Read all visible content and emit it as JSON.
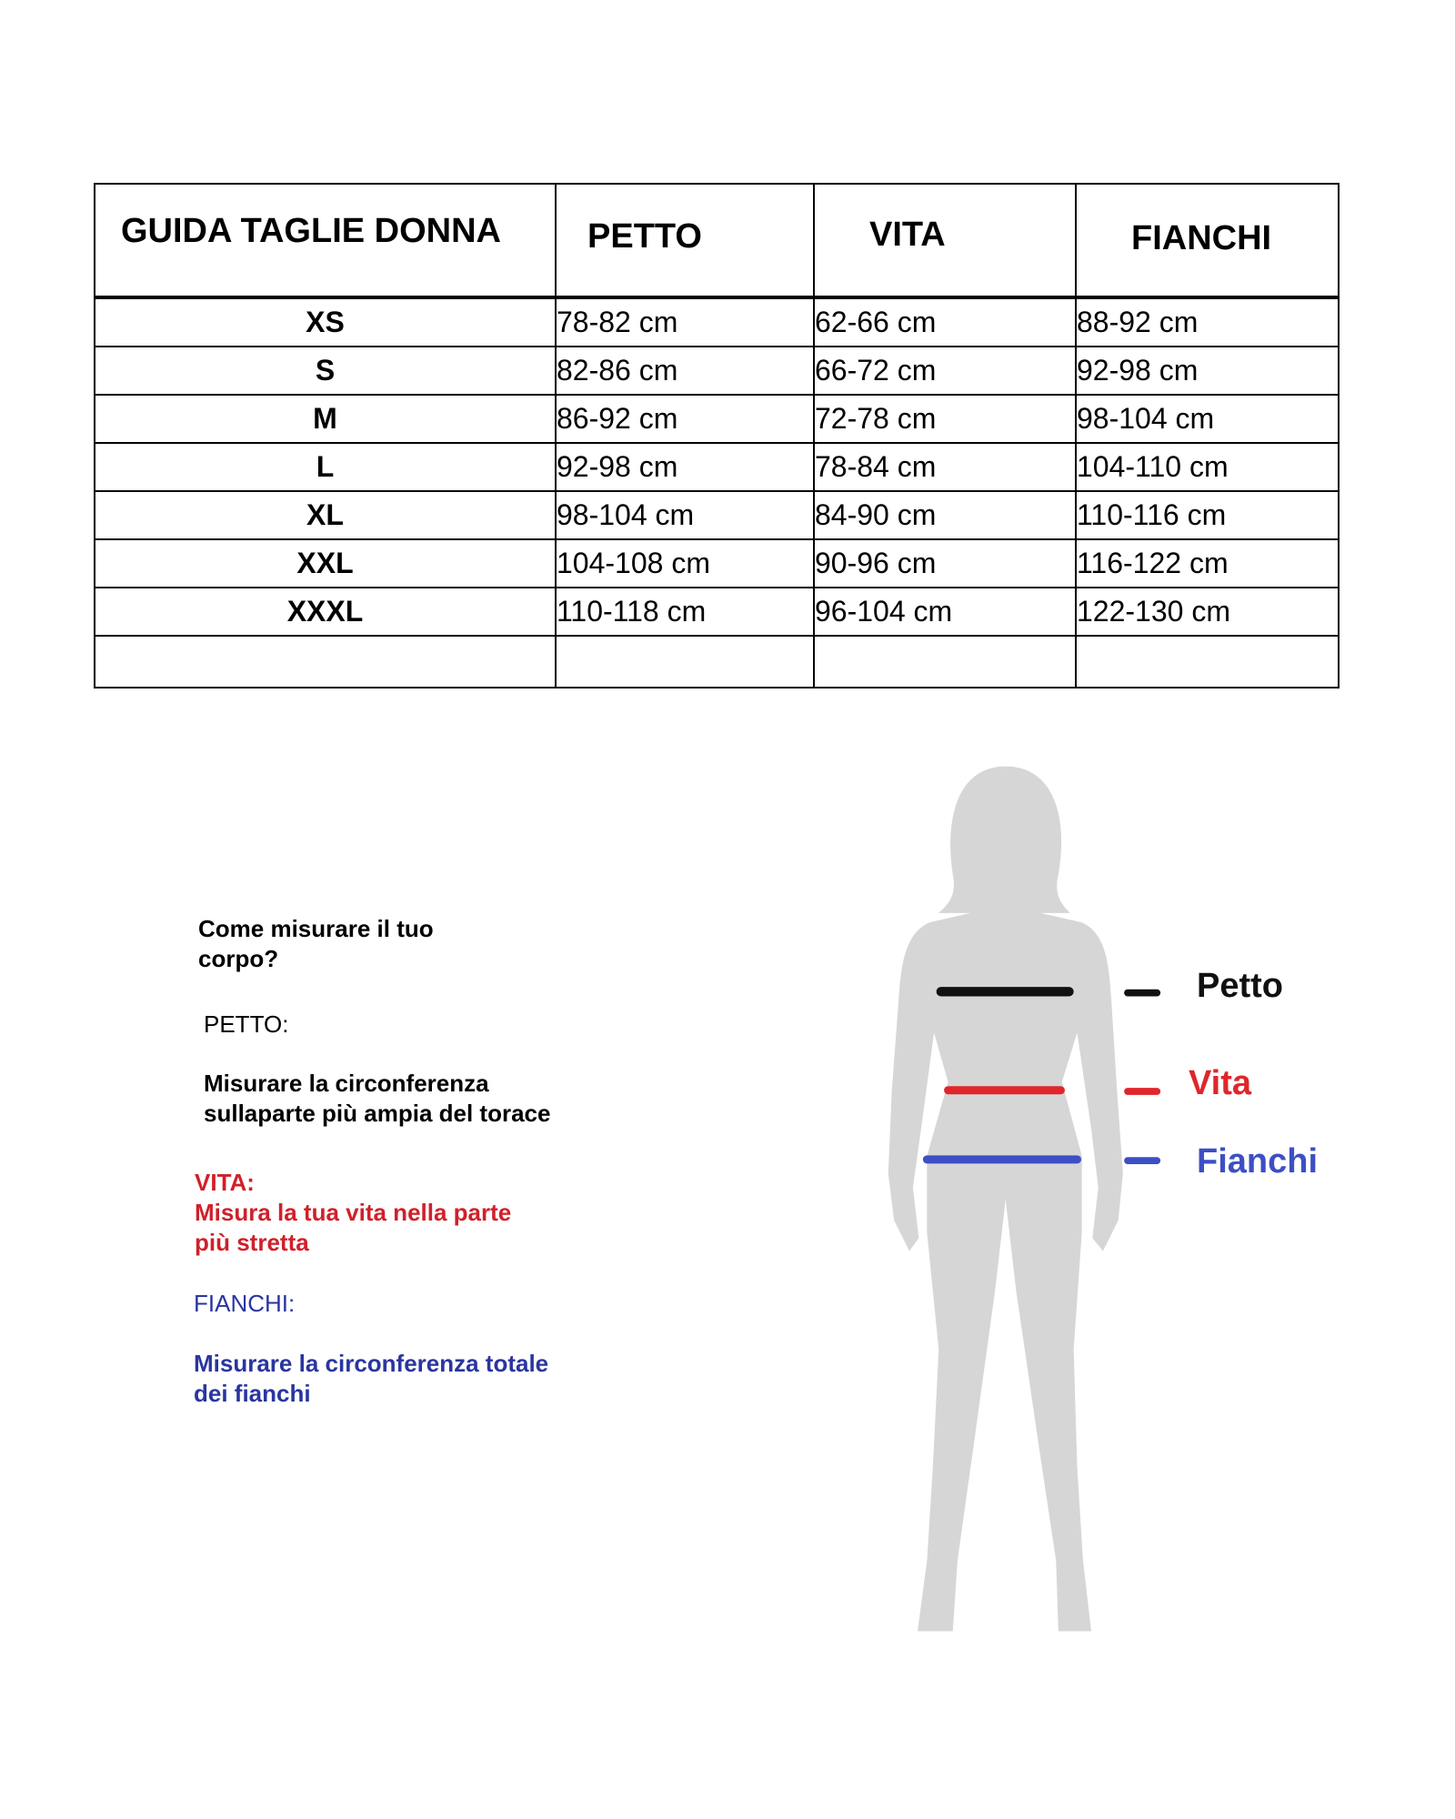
{
  "table": {
    "headers": [
      "GUIDA TAGLIE DONNA",
      "PETTO",
      "VITA",
      "FIANCHI"
    ],
    "rows": [
      {
        "size": "XS",
        "petto": "78-82 cm",
        "vita": "62-66 cm",
        "fianchi": "88-92 cm"
      },
      {
        "size": "S",
        "petto": "82-86 cm",
        "vita": "66-72 cm",
        "fianchi": "92-98 cm"
      },
      {
        "size": "M",
        "petto": "86-92 cm",
        "vita": "72-78 cm",
        "fianchi": "98-104 cm"
      },
      {
        "size": "L",
        "petto": "92-98 cm",
        "vita": "78-84 cm",
        "fianchi": "104-110 cm"
      },
      {
        "size": "XL",
        "petto": "98-104 cm",
        "vita": "84-90 cm",
        "fianchi": "110-116 cm"
      },
      {
        "size": "XXL",
        "petto": "104-108 cm",
        "vita": "90-96 cm",
        "fianchi": "116-122 cm"
      },
      {
        "size": "XXXL",
        "petto": "110-118 cm",
        "vita": "96-104 cm",
        "fianchi": "122-130 cm"
      }
    ]
  },
  "instructions": {
    "title_line1": "Come misurare il tuo",
    "title_line2": "corpo?",
    "petto_heading": "PETTO:",
    "petto_line1": "Misurare la circonferenza",
    "petto_line2": "sullaparte più ampia del torace",
    "vita_heading": "VITA:",
    "vita_line1": "Misura la tua vita nella parte",
    "vita_line2": "più stretta",
    "fianchi_heading": "FIANCHI:",
    "fianchi_line1": "Misurare la circonferenza totale",
    "fianchi_line2": "dei fianchi"
  },
  "legend": {
    "petto": "Petto",
    "vita": "Vita",
    "fianchi": "Fianchi"
  },
  "colors": {
    "petto": "#111111",
    "vita": "#e0262b",
    "fianchi": "#3d4fc4",
    "vita_text": "#d0202a",
    "fianchi_text": "#2a35a0",
    "silhouette": "#d6d6d6"
  }
}
